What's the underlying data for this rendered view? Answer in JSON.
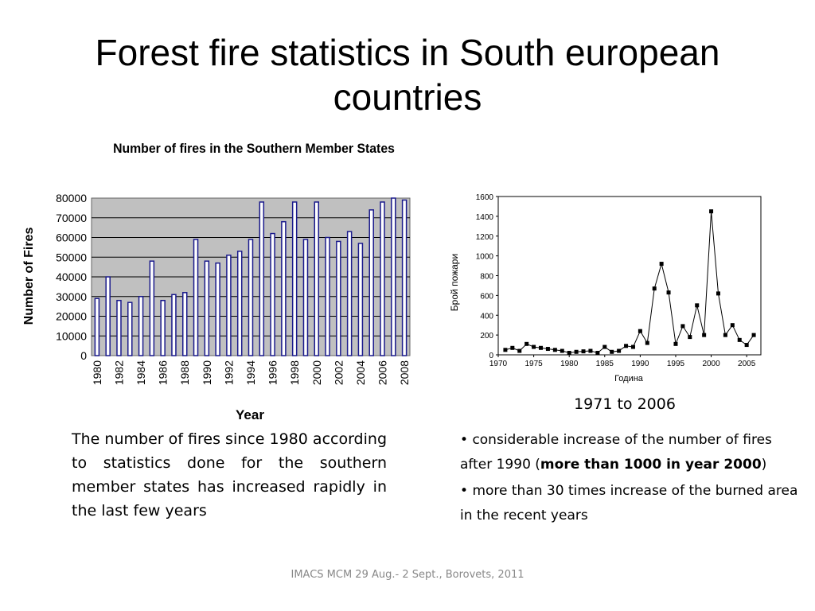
{
  "slide": {
    "title": "Forest fire statistics in South european countries",
    "left_caption": "The number of fires since 1980 according to statistics done for the southern member states has increased rapidly in the last few years",
    "right_caption": "1971 to 2006",
    "bullets": [
      {
        "text_before": "considerable increase of the number of fires after 1990 (",
        "bold": "more than 1000 in year 2000",
        "text_after": ")"
      },
      {
        "text_before": "more than 30 times increase of the burned area in the recent years",
        "bold": "",
        "text_after": ""
      }
    ],
    "footer": "IMACS MCM 29 Aug.- 2 Sept., Borovets, 2011"
  },
  "chart_data": [
    {
      "type": "bar",
      "title": "Number of fires in the Southern Member States",
      "xlabel": "Year",
      "ylabel": "Number of Fires",
      "ylim": [
        0,
        80000
      ],
      "yticks": [
        0,
        10000,
        20000,
        30000,
        40000,
        50000,
        60000,
        70000,
        80000
      ],
      "grid": true,
      "categories": [
        "1980",
        "1981",
        "1982",
        "1983",
        "1984",
        "1985",
        "1986",
        "1987",
        "1988",
        "1989",
        "1990",
        "1991",
        "1992",
        "1993",
        "1994",
        "1995",
        "1996",
        "1997",
        "1998",
        "1999",
        "2000",
        "2001",
        "2002",
        "2003",
        "2004",
        "2005",
        "2006",
        "2007",
        "2008"
      ],
      "tick_labels": [
        "1980",
        "1982",
        "1984",
        "1986",
        "1988",
        "1990",
        "1992",
        "1994",
        "1996",
        "1998",
        "2000",
        "2002",
        "2004",
        "2006",
        "2008"
      ],
      "values": [
        29000,
        40000,
        28000,
        27000,
        30000,
        48000,
        28000,
        31000,
        32000,
        59000,
        48000,
        47000,
        51000,
        53000,
        59000,
        78000,
        62000,
        68000,
        78000,
        59000,
        78000,
        60000,
        58000,
        63000,
        57000,
        74000,
        78000,
        81000,
        79000
      ],
      "colors": {
        "bar_fill": "#ffffff",
        "bar_edge": "#1a1a8c",
        "plot_bg": "#c0c0c0"
      }
    },
    {
      "type": "line",
      "xlabel": "Година",
      "ylabel": "Брой пожари",
      "xlim": [
        1970,
        2007
      ],
      "ylim": [
        0,
        1600
      ],
      "xticks": [
        1970,
        1975,
        1980,
        1985,
        1990,
        1995,
        2000,
        2005
      ],
      "yticks": [
        0,
        200,
        400,
        600,
        800,
        1000,
        1200,
        1400,
        1600
      ],
      "grid": false,
      "x": [
        1971,
        1972,
        1973,
        1974,
        1975,
        1976,
        1977,
        1978,
        1979,
        1980,
        1981,
        1982,
        1983,
        1984,
        1985,
        1986,
        1987,
        1988,
        1989,
        1990,
        1991,
        1992,
        1993,
        1994,
        1995,
        1996,
        1997,
        1998,
        1999,
        2000,
        2001,
        2002,
        2003,
        2004,
        2005,
        2006
      ],
      "y": [
        50,
        70,
        40,
        110,
        80,
        70,
        60,
        50,
        40,
        20,
        30,
        35,
        40,
        20,
        80,
        30,
        40,
        90,
        80,
        240,
        120,
        670,
        920,
        630,
        110,
        290,
        180,
        500,
        200,
        1450,
        620,
        200,
        300,
        150,
        100,
        200
      ]
    }
  ]
}
